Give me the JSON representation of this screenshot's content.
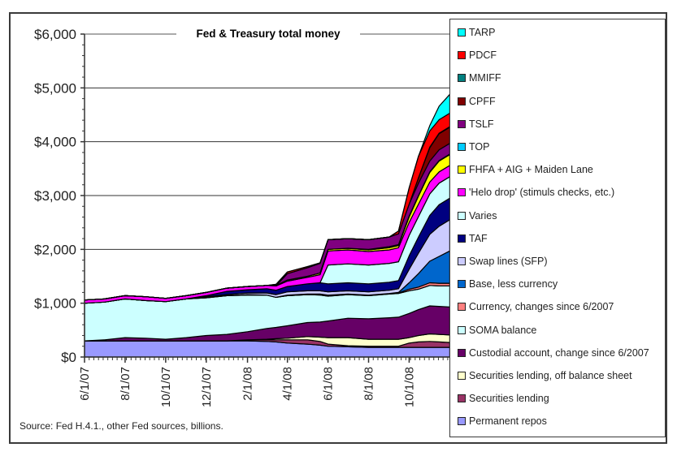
{
  "chart_data": {
    "type": "area",
    "stacked": true,
    "title": "Fed & Treasury total money",
    "source_note": "Source: Fed H.4.1., other Fed sources, billions.",
    "xlabel": "",
    "ylabel": "",
    "ylim": [
      0,
      6000
    ],
    "yticks": [
      0,
      1000,
      2000,
      3000,
      4000,
      5000,
      6000
    ],
    "ytick_labels": [
      "$0",
      "$1,000",
      "$2,000",
      "$3,000",
      "$4,000",
      "$5,000",
      "$6,000"
    ],
    "xtick_labels": [
      "6/1/07",
      "8/1/07",
      "10/1/07",
      "12/1/07",
      "2/1/08",
      "4/1/08",
      "6/1/08",
      "8/1/08",
      "10/1/08"
    ],
    "grid": "horizontal",
    "legend_position": "right",
    "x": [
      "6/1/07",
      "7/1/07",
      "8/1/07",
      "9/1/07",
      "10/1/07",
      "11/1/07",
      "12/1/07",
      "1/1/08",
      "2/1/08",
      "3/1/08",
      "3/15/08",
      "4/1/08",
      "5/1/08",
      "5/20/08",
      "6/1/08",
      "7/1/08",
      "8/1/08",
      "9/1/08",
      "9/15/08",
      "10/1/08",
      "10/15/08",
      "11/1/08",
      "11/15/08",
      "12/1/08"
    ],
    "series": [
      {
        "name": "Permanent repos",
        "color": "#9999ff",
        "values": [
          300,
          300,
          300,
          300,
          300,
          300,
          300,
          300,
          300,
          290,
          280,
          260,
          240,
          220,
          200,
          190,
          180,
          180,
          180,
          180,
          180,
          180,
          180,
          180
        ]
      },
      {
        "name": "Securities lending",
        "color": "#993366",
        "values": [
          0,
          0,
          0,
          0,
          0,
          0,
          0,
          0,
          20,
          30,
          40,
          60,
          80,
          70,
          40,
          20,
          20,
          20,
          20,
          80,
          100,
          110,
          100,
          90
        ]
      },
      {
        "name": "Securities lending, off balance sheet",
        "color": "#ffffcc",
        "values": [
          0,
          0,
          0,
          0,
          0,
          0,
          0,
          0,
          0,
          10,
          20,
          30,
          60,
          80,
          120,
          150,
          130,
          130,
          130,
          100,
          120,
          140,
          140,
          140
        ]
      },
      {
        "name": "Custodial account, change since 6/2007",
        "color": "#660066",
        "values": [
          0,
          20,
          60,
          50,
          30,
          60,
          100,
          120,
          150,
          200,
          210,
          230,
          260,
          280,
          310,
          360,
          380,
          400,
          410,
          450,
          480,
          520,
          520,
          520
        ]
      },
      {
        "name": "SOMA balance",
        "color": "#ccffff",
        "values": [
          700,
          700,
          720,
          700,
          700,
          720,
          700,
          720,
          680,
          620,
          560,
          560,
          520,
          500,
          460,
          440,
          430,
          440,
          440,
          420,
          380,
          380,
          380,
          390
        ]
      },
      {
        "name": "Currency, changes since 6/2007",
        "color": "#ff8080",
        "values": [
          0,
          0,
          0,
          0,
          0,
          0,
          0,
          0,
          0,
          0,
          0,
          0,
          0,
          10,
          10,
          10,
          10,
          10,
          10,
          30,
          40,
          50,
          50,
          50
        ]
      },
      {
        "name": "Base, less currency",
        "color": "#0066cc",
        "values": [
          0,
          0,
          0,
          0,
          0,
          0,
          10,
          0,
          10,
          0,
          0,
          10,
          10,
          10,
          10,
          0,
          0,
          0,
          10,
          120,
          250,
          400,
          500,
          600
        ]
      },
      {
        "name": "Swap lines (SFP)",
        "color": "#ccccff",
        "values": [
          0,
          0,
          0,
          0,
          0,
          0,
          10,
          20,
          30,
          40,
          50,
          60,
          60,
          60,
          60,
          60,
          60,
          60,
          70,
          250,
          380,
          500,
          560,
          580
        ]
      },
      {
        "name": "TAF",
        "color": "#000080",
        "values": [
          0,
          0,
          0,
          0,
          0,
          0,
          20,
          60,
          60,
          80,
          80,
          100,
          130,
          150,
          150,
          150,
          150,
          150,
          150,
          250,
          300,
          350,
          400,
          400
        ]
      },
      {
        "name": "Varies",
        "color": "#ccffff",
        "values": [
          0,
          0,
          0,
          0,
          0,
          0,
          0,
          0,
          0,
          0,
          0,
          0,
          0,
          0,
          350,
          350,
          350,
          350,
          350,
          380,
          380,
          400,
          400,
          400
        ]
      },
      {
        "name": "'Helo drop' (stimuls checks, etc.)",
        "color": "#ff00ff",
        "values": [
          60,
          60,
          60,
          70,
          60,
          60,
          60,
          60,
          60,
          60,
          80,
          100,
          120,
          150,
          260,
          260,
          250,
          250,
          260,
          240,
          230,
          220,
          210,
          210
        ]
      },
      {
        "name": "FHFA + AIG + Maiden Lane",
        "color": "#ffff00",
        "values": [
          0,
          0,
          0,
          0,
          0,
          0,
          0,
          0,
          0,
          0,
          10,
          20,
          20,
          30,
          30,
          30,
          30,
          40,
          40,
          100,
          150,
          180,
          200,
          200
        ]
      },
      {
        "name": "TOP",
        "color": "#00ccff",
        "values": [
          0,
          0,
          0,
          0,
          0,
          0,
          0,
          0,
          0,
          0,
          0,
          0,
          0,
          0,
          0,
          0,
          10,
          20,
          20,
          20,
          10,
          10,
          10,
          10
        ]
      },
      {
        "name": "TSLF",
        "color": "#800080",
        "values": [
          0,
          0,
          0,
          0,
          0,
          0,
          0,
          0,
          0,
          0,
          0,
          120,
          160,
          180,
          180,
          180,
          180,
          180,
          200,
          220,
          230,
          200,
          200,
          200
        ]
      },
      {
        "name": "CPFF",
        "color": "#800000",
        "values": [
          0,
          0,
          0,
          0,
          0,
          0,
          0,
          0,
          0,
          0,
          0,
          0,
          0,
          0,
          0,
          0,
          0,
          0,
          0,
          0,
          100,
          250,
          300,
          300
        ]
      },
      {
        "name": "MMIFF",
        "color": "#008080",
        "values": [
          0,
          0,
          0,
          0,
          0,
          0,
          0,
          0,
          0,
          0,
          0,
          0,
          0,
          0,
          0,
          0,
          0,
          0,
          0,
          0,
          0,
          10,
          10,
          10
        ]
      },
      {
        "name": "PDCF",
        "color": "#ff0000",
        "values": [
          0,
          0,
          0,
          0,
          0,
          0,
          0,
          0,
          0,
          0,
          20,
          30,
          20,
          10,
          0,
          0,
          0,
          0,
          50,
          300,
          400,
          300,
          250,
          250
        ]
      },
      {
        "name": "TARP",
        "color": "#00ffff",
        "values": [
          0,
          0,
          0,
          0,
          0,
          0,
          0,
          0,
          0,
          0,
          0,
          0,
          0,
          0,
          0,
          0,
          0,
          0,
          0,
          0,
          0,
          100,
          250,
          350
        ]
      }
    ]
  },
  "legend": {
    "items": [
      {
        "label": "TARP",
        "color": "#00ffff"
      },
      {
        "label": "PDCF",
        "color": "#ff0000"
      },
      {
        "label": "MMIFF",
        "color": "#008080"
      },
      {
        "label": "CPFF",
        "color": "#800000"
      },
      {
        "label": "TSLF",
        "color": "#800080"
      },
      {
        "label": "TOP",
        "color": "#00ccff"
      },
      {
        "label": "FHFA + AIG + Maiden Lane",
        "color": "#ffff00"
      },
      {
        "label": "'Helo drop' (stimuls checks, etc.)",
        "color": "#ff00ff"
      },
      {
        "label": "Varies",
        "color": "#ccffff"
      },
      {
        "label": "TAF",
        "color": "#000080"
      },
      {
        "label": "Swap lines (SFP)",
        "color": "#ccccff"
      },
      {
        "label": "Base, less currency",
        "color": "#0066cc"
      },
      {
        "label": "Currency, changes since 6/2007",
        "color": "#ff8080"
      },
      {
        "label": "SOMA balance",
        "color": "#ccffff"
      },
      {
        "label": "Custodial account, change since 6/2007",
        "color": "#660066"
      },
      {
        "label": "Securities lending, off balance sheet",
        "color": "#ffffcc"
      },
      {
        "label": "Securities lending",
        "color": "#993366"
      },
      {
        "label": "Permanent repos",
        "color": "#9999ff"
      }
    ]
  }
}
